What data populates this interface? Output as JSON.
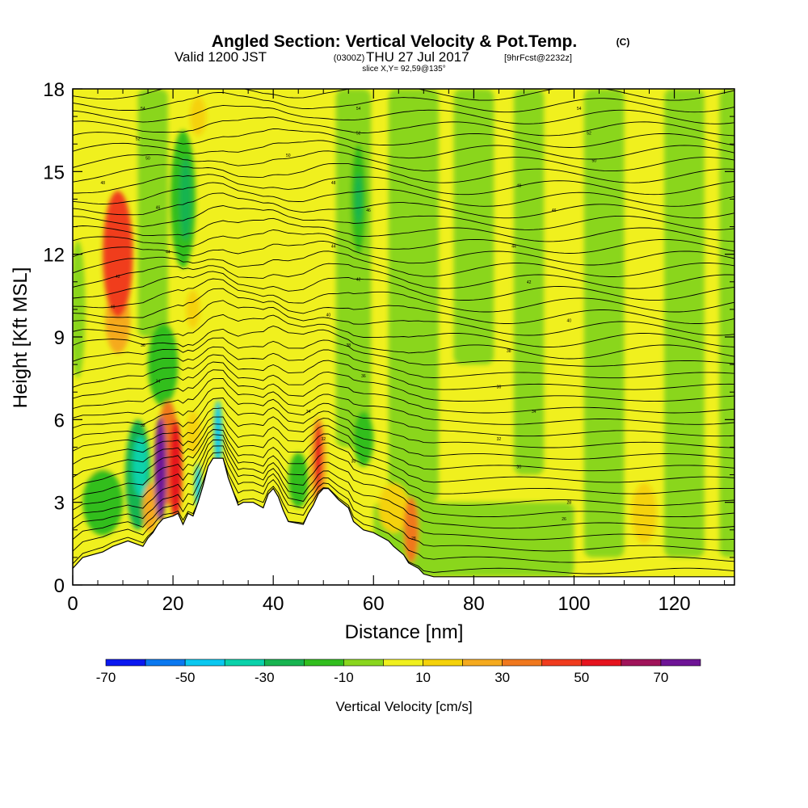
{
  "header": {
    "title": "Angled Section: Vertical Velocity & Pot.Temp.",
    "title_unit": "(C)",
    "valid_prefix": "Valid 1200 JST",
    "valid_utc": "(0300Z)",
    "valid_date": "THU 27 Jul 2017",
    "forecast": "[9hrFcst@2232z]",
    "slice": "slice X,Y= 92,59@135°"
  },
  "chart_data": {
    "type": "heatmap",
    "xlabel": "Distance [nm]",
    "ylabel": "Height [Kft MSL]",
    "xlim": [
      0,
      132
    ],
    "ylim": [
      0,
      18
    ],
    "x_ticks": [
      "0",
      "20",
      "40",
      "60",
      "80",
      "100",
      "120"
    ],
    "y_ticks": [
      "0",
      "3",
      "6",
      "9",
      "12",
      "15",
      "18"
    ],
    "colorbar": {
      "label": "Vertical Velocity [cm/s]",
      "tick_labels": [
        "-70",
        "-50",
        "-30",
        "-10",
        "10",
        "30",
        "50",
        "70"
      ],
      "bins": [
        {
          "min": -70,
          "max": -60,
          "color": "#0a18f0"
        },
        {
          "min": -60,
          "max": -50,
          "color": "#0a78f0"
        },
        {
          "min": -50,
          "max": -40,
          "color": "#0ac8f0"
        },
        {
          "min": -40,
          "max": -30,
          "color": "#0ad2aa"
        },
        {
          "min": -30,
          "max": -20,
          "color": "#18b450"
        },
        {
          "min": -20,
          "max": -10,
          "color": "#32be1e"
        },
        {
          "min": -10,
          "max": 0,
          "color": "#8ad61e"
        },
        {
          "min": 0,
          "max": 10,
          "color": "#f0f01e"
        },
        {
          "min": 10,
          "max": 20,
          "color": "#f5d20a"
        },
        {
          "min": 20,
          "max": 30,
          "color": "#f5aa1e"
        },
        {
          "min": 30,
          "max": 40,
          "color": "#f0781e"
        },
        {
          "min": 40,
          "max": 50,
          "color": "#f03c1e"
        },
        {
          "min": 50,
          "max": 60,
          "color": "#e6141e"
        },
        {
          "min": 60,
          "max": 70,
          "color": "#a0145a"
        },
        {
          "min": 70,
          "max": 80,
          "color": "#6e1496"
        }
      ]
    },
    "terrain": [
      [
        0,
        0.6
      ],
      [
        2,
        1.0
      ],
      [
        6,
        1.2
      ],
      [
        8,
        1.4
      ],
      [
        11,
        1.6
      ],
      [
        14,
        1.4
      ],
      [
        15,
        1.7
      ],
      [
        16,
        1.9
      ],
      [
        17,
        2.2
      ],
      [
        18,
        2.4
      ],
      [
        20,
        2.5
      ],
      [
        21,
        2.6
      ],
      [
        22,
        2.2
      ],
      [
        23,
        2.6
      ],
      [
        24,
        2.5
      ],
      [
        25,
        3.0
      ],
      [
        26,
        3.6
      ],
      [
        27,
        4.3
      ],
      [
        28,
        4.6
      ],
      [
        30,
        4.6
      ],
      [
        31,
        3.9
      ],
      [
        32,
        3.4
      ],
      [
        33,
        2.9
      ],
      [
        34,
        3.0
      ],
      [
        36,
        3.0
      ],
      [
        38,
        2.8
      ],
      [
        39,
        3.3
      ],
      [
        40,
        3.5
      ],
      [
        41,
        3.2
      ],
      [
        42,
        2.7
      ],
      [
        43,
        2.3
      ],
      [
        46,
        2.2
      ],
      [
        47,
        2.6
      ],
      [
        48,
        2.9
      ],
      [
        49,
        3.3
      ],
      [
        50,
        3.5
      ],
      [
        51,
        3.5
      ],
      [
        52,
        3.3
      ],
      [
        53,
        3.1
      ],
      [
        55,
        2.8
      ],
      [
        56,
        2.3
      ],
      [
        58,
        2.0
      ],
      [
        60,
        1.9
      ],
      [
        61,
        1.8
      ],
      [
        63,
        1.6
      ],
      [
        64,
        1.4
      ],
      [
        66,
        1.1
      ],
      [
        67,
        0.8
      ],
      [
        69,
        0.6
      ],
      [
        70,
        0.4
      ],
      [
        72,
        0.3
      ],
      [
        132,
        0.3
      ]
    ],
    "updrafts": [
      {
        "x": 9,
        "y": 12,
        "rx": 3,
        "ry": 2.3,
        "value": 45
      },
      {
        "x": 9,
        "y": 9.6,
        "rx": 2.5,
        "ry": 1.2,
        "value": 25
      },
      {
        "x": 17.5,
        "y": 4.2,
        "rx": 1.2,
        "ry": 1.9,
        "value": 75
      },
      {
        "x": 20.5,
        "y": 4.2,
        "rx": 1.3,
        "ry": 1.8,
        "value": 55
      },
      {
        "x": 19,
        "y": 4.8,
        "rx": 2.2,
        "ry": 1.9,
        "value": 35
      },
      {
        "x": 15.5,
        "y": 2.8,
        "rx": 1.5,
        "ry": 0.9,
        "value": 25
      },
      {
        "x": 24,
        "y": 5.5,
        "rx": 1.5,
        "ry": 0.8,
        "value": 15
      },
      {
        "x": 49,
        "y": 4.6,
        "rx": 0.8,
        "ry": 1.3,
        "value": 55
      },
      {
        "x": 49,
        "y": 4.4,
        "rx": 1.6,
        "ry": 1.7,
        "value": 25
      },
      {
        "x": 67.5,
        "y": 2.0,
        "rx": 1.5,
        "ry": 1.2,
        "value": 35
      },
      {
        "x": 64,
        "y": 2.8,
        "rx": 3,
        "ry": 0.9,
        "value": 15
      },
      {
        "x": 114,
        "y": 2.6,
        "rx": 2.5,
        "ry": 1.1,
        "value": 15
      },
      {
        "x": 24,
        "y": 10.0,
        "rx": 1.4,
        "ry": 0.7,
        "value": 15
      },
      {
        "x": 25,
        "y": 17.0,
        "rx": 1.6,
        "ry": 0.7,
        "value": 15
      },
      {
        "x": 5,
        "y": 5.0,
        "rx": 4,
        "ry": 1.2,
        "value": 5
      }
    ],
    "downdrafts": [
      {
        "x": 6,
        "y": 3.0,
        "rx": 4,
        "ry": 1.2,
        "value": -15
      },
      {
        "x": 13,
        "y": 4.0,
        "rx": 2.5,
        "ry": 2.0,
        "value": -25
      },
      {
        "x": 13.5,
        "y": 4.3,
        "rx": 1.5,
        "ry": 1.1,
        "value": -35
      },
      {
        "x": 29,
        "y": 5.5,
        "rx": 0.8,
        "ry": 1.2,
        "value": -45
      },
      {
        "x": 25,
        "y": 3.6,
        "rx": 0.6,
        "ry": 0.8,
        "value": -45
      },
      {
        "x": 22,
        "y": 14.0,
        "rx": 2.5,
        "ry": 2.5,
        "value": -15
      },
      {
        "x": 22.5,
        "y": 14.0,
        "rx": 1.2,
        "ry": 1.5,
        "value": -25
      },
      {
        "x": 18,
        "y": 8.0,
        "rx": 3,
        "ry": 1.5,
        "value": -15
      },
      {
        "x": 57,
        "y": 14.0,
        "rx": 1.5,
        "ry": 2.0,
        "value": -15
      },
      {
        "x": 57,
        "y": 14.0,
        "rx": 0.7,
        "ry": 0.9,
        "value": -25
      },
      {
        "x": 58,
        "y": 5.3,
        "rx": 2,
        "ry": 1.0,
        "value": -15
      },
      {
        "x": 45,
        "y": 3.8,
        "rx": 2,
        "ry": 1.0,
        "value": -15
      },
      {
        "x": 1,
        "y": 10.0,
        "rx": 1.5,
        "ry": 2.5,
        "value": -5
      }
    ],
    "sinking_bands": [
      {
        "x": 16,
        "y1": 9.0,
        "y2": 18.0,
        "halfwidth": 3.0,
        "value": -5
      },
      {
        "x": 56,
        "y1": 5.0,
        "y2": 18.0,
        "halfwidth": 3.5,
        "value": -5
      },
      {
        "x": 68,
        "y1": 3.0,
        "y2": 18.0,
        "halfwidth": 5.0,
        "value": -5
      },
      {
        "x": 80,
        "y1": 8.0,
        "y2": 18.0,
        "halfwidth": 4.0,
        "value": -5
      },
      {
        "x": 91,
        "y1": 4.0,
        "y2": 18.0,
        "halfwidth": 3.0,
        "value": -5
      },
      {
        "x": 106,
        "y1": 1.0,
        "y2": 18.0,
        "halfwidth": 4.0,
        "value": -5
      },
      {
        "x": 122,
        "y1": 1.0,
        "y2": 18.0,
        "halfwidth": 4.0,
        "value": -5
      },
      {
        "x": 131,
        "y1": 1.0,
        "y2": 18.0,
        "halfwidth": 2.0,
        "value": -5
      },
      {
        "x": 80,
        "y1": 0.3,
        "y2": 3.0,
        "halfwidth": 20.0,
        "value": -5
      }
    ],
    "isentropes": {
      "theta_bottom": 24,
      "theta_step": 1,
      "theta_count": 43,
      "labels": [
        {
          "x": 14,
          "y": 17.3,
          "text": "54"
        },
        {
          "x": 57,
          "y": 17.3,
          "text": "54"
        },
        {
          "x": 101,
          "y": 17.3,
          "text": "54"
        },
        {
          "x": 103,
          "y": 16.4,
          "text": "52"
        },
        {
          "x": 13,
          "y": 16.2,
          "text": "52"
        },
        {
          "x": 57,
          "y": 16.4,
          "text": "52"
        },
        {
          "x": 15,
          "y": 15.5,
          "text": "50"
        },
        {
          "x": 43,
          "y": 15.6,
          "text": "50"
        },
        {
          "x": 104,
          "y": 15.4,
          "text": "50"
        },
        {
          "x": 6,
          "y": 14.6,
          "text": "48"
        },
        {
          "x": 52,
          "y": 14.6,
          "text": "48"
        },
        {
          "x": 89,
          "y": 14.5,
          "text": "48"
        },
        {
          "x": 17,
          "y": 13.7,
          "text": "46"
        },
        {
          "x": 59,
          "y": 13.6,
          "text": "46"
        },
        {
          "x": 96,
          "y": 13.6,
          "text": "46"
        },
        {
          "x": 19,
          "y": 12.1,
          "text": "44"
        },
        {
          "x": 52,
          "y": 12.3,
          "text": "44"
        },
        {
          "x": 88,
          "y": 12.3,
          "text": "44"
        },
        {
          "x": 57,
          "y": 11.1,
          "text": "42"
        },
        {
          "x": 91,
          "y": 11.0,
          "text": "42"
        },
        {
          "x": 9,
          "y": 11.2,
          "text": "42"
        },
        {
          "x": 8,
          "y": 10.1,
          "text": "40"
        },
        {
          "x": 51,
          "y": 9.8,
          "text": "40"
        },
        {
          "x": 99,
          "y": 9.6,
          "text": "40"
        },
        {
          "x": 55,
          "y": 8.7,
          "text": "38"
        },
        {
          "x": 87,
          "y": 8.5,
          "text": "38"
        },
        {
          "x": 14,
          "y": 8.7,
          "text": "36"
        },
        {
          "x": 58,
          "y": 7.6,
          "text": "36"
        },
        {
          "x": 85,
          "y": 7.2,
          "text": "36"
        },
        {
          "x": 17,
          "y": 7.4,
          "text": "34"
        },
        {
          "x": 47,
          "y": 6.3,
          "text": "34"
        },
        {
          "x": 92,
          "y": 6.3,
          "text": "34"
        },
        {
          "x": 14,
          "y": 5.8,
          "text": "32"
        },
        {
          "x": 50,
          "y": 5.3,
          "text": "32"
        },
        {
          "x": 85,
          "y": 5.3,
          "text": "32"
        },
        {
          "x": 56,
          "y": 4.5,
          "text": "30"
        },
        {
          "x": 89,
          "y": 4.3,
          "text": "30"
        },
        {
          "x": 99,
          "y": 3.0,
          "text": "28"
        },
        {
          "x": 98,
          "y": 2.4,
          "text": "26"
        },
        {
          "x": 68,
          "y": 1.7,
          "text": "28"
        }
      ]
    }
  }
}
